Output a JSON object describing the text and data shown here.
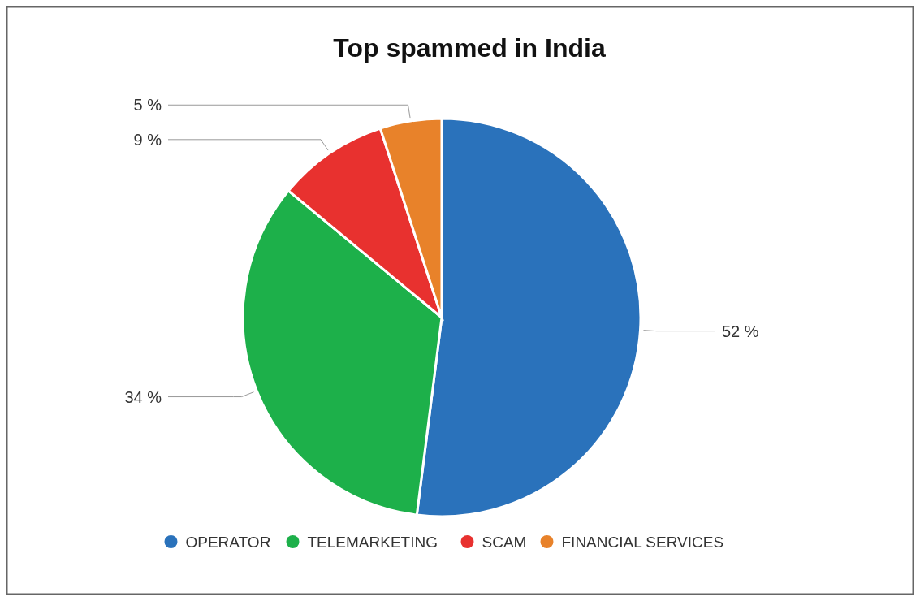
{
  "chart_data": {
    "type": "pie",
    "title": "Top spammed in India",
    "categories": [
      "OPERATOR",
      "TELEMARKETING",
      "SCAM",
      "FINANCIAL SERVICES"
    ],
    "values": [
      52,
      34,
      9,
      5
    ],
    "value_labels": [
      "52 %",
      "34 %",
      "9 %",
      "5 %"
    ],
    "colors": [
      "#2a72bb",
      "#1db04a",
      "#e8312f",
      "#e8822a"
    ],
    "legend": "bottom"
  }
}
